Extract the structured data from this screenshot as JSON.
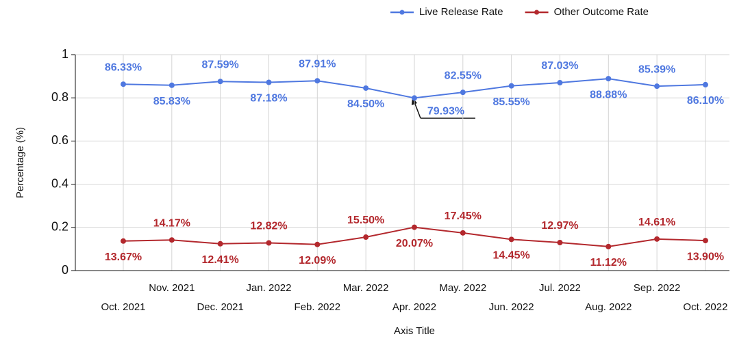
{
  "chart_data": {
    "type": "line",
    "categories": [
      "Oct. 2021",
      "Nov. 2021",
      "Dec. 2021",
      "Jan. 2022",
      "Feb. 2022",
      "Mar. 2022",
      "Apr. 2022",
      "May. 2022",
      "Jun. 2022",
      "Jul. 2022",
      "Aug. 2022",
      "Sep. 2022",
      "Oct. 2022"
    ],
    "series": [
      {
        "name": "Live Release Rate",
        "color": "#4f78e0",
        "values": [
          0.8633,
          0.8583,
          0.8759,
          0.8718,
          0.8791,
          0.845,
          0.7993,
          0.8255,
          0.8555,
          0.8703,
          0.8888,
          0.8539,
          0.861
        ],
        "value_labels": [
          "86.33%",
          "85.83%",
          "87.59%",
          "87.18%",
          "87.91%",
          "84.50%",
          "79.93%",
          "82.55%",
          "85.55%",
          "87.03%",
          "88.88%",
          "85.39%",
          "86.10%"
        ]
      },
      {
        "name": "Other Outcome Rate",
        "color": "#b3282d",
        "values": [
          0.1367,
          0.1417,
          0.1241,
          0.1282,
          0.1209,
          0.155,
          0.2007,
          0.1745,
          0.1445,
          0.1297,
          0.1112,
          0.1461,
          0.139
        ],
        "value_labels": [
          "13.67%",
          "14.17%",
          "12.41%",
          "12.82%",
          "12.09%",
          "15.50%",
          "20.07%",
          "17.45%",
          "14.45%",
          "12.97%",
          "11.12%",
          "14.61%",
          "13.90%"
        ]
      }
    ],
    "ylabel": "Percentage (%)",
    "xlabel": "Axis Title",
    "ylim": [
      0,
      1
    ],
    "yticks": [
      0,
      0.2,
      0.4,
      0.6,
      0.8,
      1
    ],
    "grid": true,
    "legend": "top-right"
  }
}
